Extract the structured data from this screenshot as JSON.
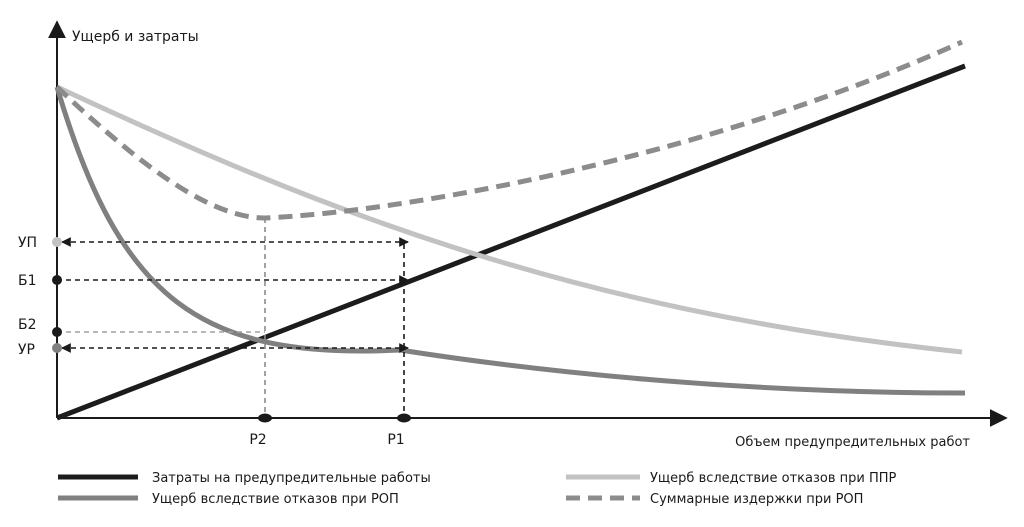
{
  "chart_data": {
    "type": "line",
    "y_axis_label": "Ущерб и затраты",
    "x_axis_label": "Объем предупредительных работ",
    "y_levels": [
      {
        "label": "УП",
        "color": "#c2c2c2"
      },
      {
        "label": "Б1",
        "color": "#1a1a1a"
      },
      {
        "label": "Б2",
        "color": "#1a1a1a"
      },
      {
        "label": "УР",
        "color": "#808080"
      }
    ],
    "x_points": [
      {
        "label": "Р2"
      },
      {
        "label": "Р1"
      }
    ],
    "series": [
      {
        "name": "Затраты на предупредительные работы",
        "color": "#1c1c1c",
        "style": "solid"
      },
      {
        "name": "Ущерб вследствие отказов при ППР",
        "color": "#c2c2c2",
        "style": "solid"
      },
      {
        "name": "Ущерб вследствие отказов при РОП",
        "color": "#808080",
        "style": "solid"
      },
      {
        "name": "Суммарные издержки при РОП",
        "color": "#8c8c8c",
        "style": "dashed"
      }
    ],
    "grid": false,
    "legend_position": "bottom"
  }
}
